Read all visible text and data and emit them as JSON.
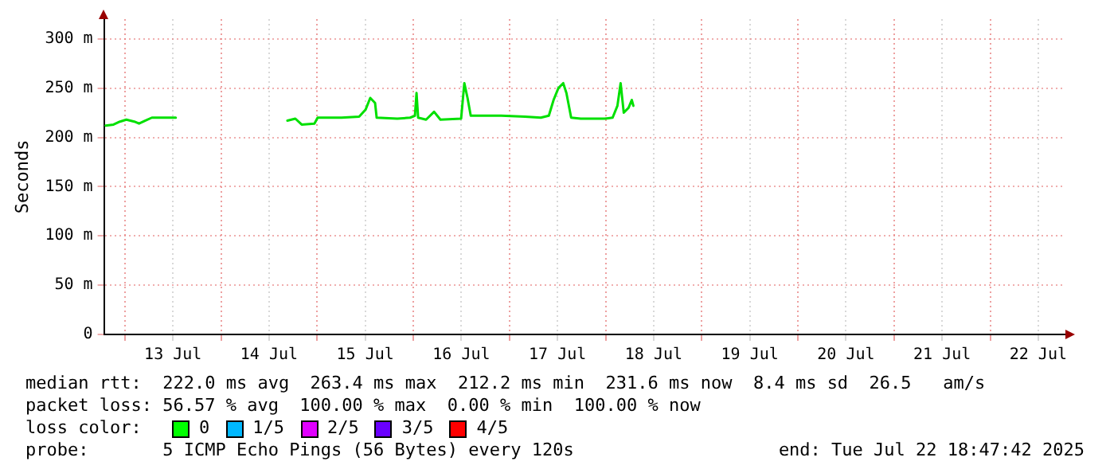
{
  "chart_data": {
    "type": "line",
    "ylabel": "Seconds",
    "x": [
      "2025-07-12T19:11",
      "2025-07-12T21:10",
      "2025-07-12T22:46",
      "2025-07-13T00:22",
      "2025-07-13T02:21",
      "2025-07-13T03:32",
      "2025-07-13T05:08",
      "2025-07-13T06:44",
      "2025-07-13T08:19",
      "2025-07-13T12:42",
      "2025-07-14T03:00",
      "2025-07-14T16:34",
      "2025-07-14T18:33",
      "2025-07-14T20:08",
      "2025-07-14T23:19",
      "2025-07-15T00:07",
      "2025-07-15T06:05",
      "2025-07-15T10:28",
      "2025-07-15T12:04",
      "2025-07-15T13:15",
      "2025-07-15T14:27",
      "2025-07-15T14:51",
      "2025-07-15T20:01",
      "2025-07-15T23:12",
      "2025-07-16T00:24",
      "2025-07-16T00:48",
      "2025-07-16T01:12",
      "2025-07-16T03:11",
      "2025-07-16T05:11",
      "2025-07-16T05:58",
      "2025-07-16T06:46",
      "2025-07-16T11:56",
      "2025-07-16T12:44",
      "2025-07-16T13:32",
      "2025-07-16T14:20",
      "2025-07-16T21:54",
      "2025-07-17T03:52",
      "2025-07-17T07:50",
      "2025-07-17T09:50",
      "2025-07-17T11:01",
      "2025-07-17T12:13",
      "2025-07-17T13:25",
      "2025-07-17T14:13",
      "2025-07-17T15:24",
      "2025-07-17T17:47",
      "2025-07-17T23:46",
      "2025-07-18T01:45",
      "2025-07-18T02:57",
      "2025-07-18T03:45",
      "2025-07-18T04:32",
      "2025-07-18T05:44",
      "2025-07-18T06:32",
      "2025-07-18T06:56"
    ],
    "series": [
      {
        "color": "#00e000",
        "values": [
          212,
          213,
          216,
          218,
          216,
          214,
          217,
          220,
          220,
          220,
          null,
          217,
          219,
          213,
          214,
          220,
          220,
          221,
          228,
          240,
          235,
          220,
          219,
          220,
          222,
          245,
          220,
          218,
          226,
          222,
          218,
          219,
          255,
          240,
          222,
          222,
          221,
          220,
          222,
          238,
          250,
          255,
          245,
          220,
          219,
          219,
          220,
          232,
          255,
          225,
          230,
          238,
          232
        ]
      }
    ],
    "xlim": [
      "2025-07-12T18:47",
      "2025-07-22T18:47"
    ],
    "xticks": [
      {
        "value": "2025-07-13T00:00",
        "label": null
      },
      {
        "value": "2025-07-13T12:00",
        "label": "13 Jul"
      },
      {
        "value": "2025-07-14T00:00",
        "label": null
      },
      {
        "value": "2025-07-14T12:00",
        "label": "14 Jul"
      },
      {
        "value": "2025-07-15T00:00",
        "label": null
      },
      {
        "value": "2025-07-15T12:00",
        "label": "15 Jul"
      },
      {
        "value": "2025-07-16T00:00",
        "label": null
      },
      {
        "value": "2025-07-16T12:00",
        "label": "16 Jul"
      },
      {
        "value": "2025-07-17T00:00",
        "label": null
      },
      {
        "value": "2025-07-17T12:00",
        "label": "17 Jul"
      },
      {
        "value": "2025-07-18T00:00",
        "label": null
      },
      {
        "value": "2025-07-18T12:00",
        "label": "18 Jul"
      },
      {
        "value": "2025-07-19T00:00",
        "label": null
      },
      {
        "value": "2025-07-19T12:00",
        "label": "19 Jul"
      },
      {
        "value": "2025-07-20T00:00",
        "label": null
      },
      {
        "value": "2025-07-20T12:00",
        "label": "20 Jul"
      },
      {
        "value": "2025-07-21T00:00",
        "label": null
      },
      {
        "value": "2025-07-21T12:00",
        "label": "21 Jul"
      },
      {
        "value": "2025-07-22T00:00",
        "label": null
      },
      {
        "value": "2025-07-22T12:00",
        "label": "22 Jul"
      }
    ],
    "ylim": [
      0,
      320
    ],
    "yticks": [
      0,
      {
        "value": 50,
        "label": "50 m"
      },
      {
        "value": 100,
        "label": "100 m"
      },
      {
        "value": 150,
        "label": "150 m"
      },
      {
        "value": 200,
        "label": "200 m"
      },
      {
        "value": 250,
        "label": "250 m"
      },
      {
        "value": 300,
        "label": "300 m"
      }
    ],
    "grid": true,
    "legend": false,
    "marker": "none",
    "line_style": "solid",
    "annotations": [
      "median rtt:  222.0 ms avg  263.4 ms max  212.2 ms min  231.6 ms now  8.4 ms sd  26.5   am/s",
      "packet loss: 56.57 % avg  100.00 % max  0.00 % min  100.00 % now",
      "loss color:",
      "0",
      "1/5",
      "2/5",
      "3/5",
      "4/5",
      "probe:       5 ICMP Echo Pings (56 Bytes) every 120s",
      "end: Tue Jul 22 18:47:42 2025"
    ]
  }
}
